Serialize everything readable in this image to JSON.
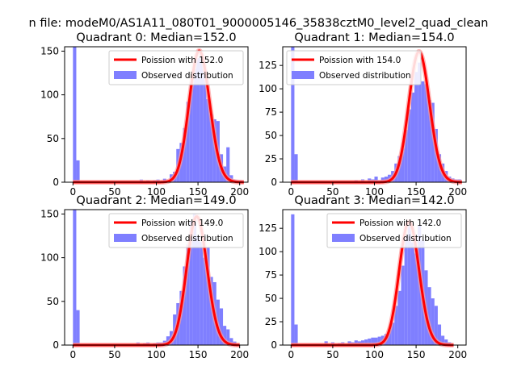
{
  "figure": {
    "suptitle": "n file: modeM0/AS1A11_080T01_9000005146_35838cztM0_level2_quad_clean"
  },
  "colors": {
    "hist": "#7f7fff",
    "fit": "#ff0000",
    "fit_highlight": "#ff9a9a",
    "axis": "#000000",
    "legend_edge": "#cccccc"
  },
  "chart_data": [
    {
      "type": "bar",
      "title": "Quadrant 0: Median=152.0",
      "xlim": [
        -10,
        210
      ],
      "ylim": [
        0,
        155
      ],
      "xticks": [
        0,
        50,
        100,
        150,
        200
      ],
      "yticks": [
        0,
        50,
        100,
        150
      ],
      "legend_position": "upper-right",
      "legend": [
        "Poission with 152.0",
        "Observed distribution"
      ],
      "bin_width": 4,
      "bins": [
        [
          0,
          155
        ],
        [
          4,
          25
        ],
        [
          80,
          3
        ],
        [
          88,
          2
        ],
        [
          96,
          2
        ],
        [
          100,
          3
        ],
        [
          108,
          4
        ],
        [
          116,
          9
        ],
        [
          120,
          12
        ],
        [
          124,
          38
        ],
        [
          128,
          45
        ],
        [
          132,
          62
        ],
        [
          136,
          92
        ],
        [
          140,
          114
        ],
        [
          144,
          130
        ],
        [
          148,
          142
        ],
        [
          152,
          148
        ],
        [
          156,
          128
        ],
        [
          160,
          95
        ],
        [
          164,
          78
        ],
        [
          168,
          72
        ],
        [
          172,
          70
        ],
        [
          176,
          32
        ],
        [
          180,
          18
        ],
        [
          184,
          40
        ],
        [
          188,
          8
        ],
        [
          192,
          3
        ],
        [
          196,
          2
        ],
        [
          200,
          2
        ]
      ],
      "poisson_lambda": 152.0,
      "poisson_scale": 4650,
      "fit_x": [
        0,
        205
      ]
    },
    {
      "type": "bar",
      "title": "Quadrant 1: Median=154.0",
      "xlim": [
        -10,
        210
      ],
      "ylim": [
        0,
        145
      ],
      "xticks": [
        0,
        50,
        100,
        150,
        200
      ],
      "yticks": [
        0,
        25,
        50,
        75,
        100,
        125
      ],
      "legend_position": "upper-left",
      "legend": [
        "Poission with 154.0",
        "Observed distribution"
      ],
      "bin_width": 4,
      "bins": [
        [
          0,
          145
        ],
        [
          4,
          30
        ],
        [
          76,
          2
        ],
        [
          84,
          3
        ],
        [
          92,
          4
        ],
        [
          96,
          3
        ],
        [
          100,
          6
        ],
        [
          104,
          2
        ],
        [
          108,
          5
        ],
        [
          112,
          6
        ],
        [
          116,
          8
        ],
        [
          120,
          12
        ],
        [
          124,
          20
        ],
        [
          128,
          28
        ],
        [
          132,
          36
        ],
        [
          136,
          56
        ],
        [
          140,
          78
        ],
        [
          144,
          96
        ],
        [
          148,
          118
        ],
        [
          152,
          128
        ],
        [
          156,
          108
        ],
        [
          160,
          105
        ],
        [
          164,
          88
        ],
        [
          168,
          85
        ],
        [
          172,
          57
        ],
        [
          176,
          30
        ],
        [
          180,
          20
        ],
        [
          184,
          12
        ],
        [
          188,
          6
        ],
        [
          192,
          4
        ],
        [
          196,
          3
        ],
        [
          200,
          3
        ]
      ],
      "poisson_lambda": 154.0,
      "poisson_scale": 4350,
      "fit_x": [
        0,
        205
      ]
    },
    {
      "type": "bar",
      "title": "Quadrant 2: Median=149.0",
      "xlim": [
        -10,
        210
      ],
      "ylim": [
        0,
        155
      ],
      "xticks": [
        0,
        50,
        100,
        150,
        200
      ],
      "yticks": [
        0,
        50,
        100,
        150
      ],
      "legend_position": "upper-right",
      "legend": [
        "Poission with 149.0",
        "Observed distribution"
      ],
      "bin_width": 4,
      "bins": [
        [
          0,
          155
        ],
        [
          4,
          40
        ],
        [
          76,
          3
        ],
        [
          84,
          2
        ],
        [
          88,
          3
        ],
        [
          96,
          2
        ],
        [
          100,
          3
        ],
        [
          104,
          3
        ],
        [
          108,
          5
        ],
        [
          112,
          10
        ],
        [
          116,
          16
        ],
        [
          120,
          35
        ],
        [
          124,
          48
        ],
        [
          128,
          62
        ],
        [
          132,
          90
        ],
        [
          136,
          115
        ],
        [
          140,
          142
        ],
        [
          144,
          150
        ],
        [
          148,
          125
        ],
        [
          152,
          118
        ],
        [
          156,
          100
        ],
        [
          160,
          112
        ],
        [
          164,
          78
        ],
        [
          168,
          72
        ],
        [
          172,
          52
        ],
        [
          176,
          42
        ],
        [
          180,
          22
        ],
        [
          184,
          18
        ],
        [
          188,
          8
        ],
        [
          192,
          4
        ]
      ],
      "poisson_lambda": 149.0,
      "poisson_scale": 4500,
      "fit_x": [
        0,
        200
      ]
    },
    {
      "type": "bar",
      "title": "Quadrant 3: Median=142.0",
      "xlim": [
        -10,
        210
      ],
      "ylim": [
        0,
        145
      ],
      "xticks": [
        0,
        50,
        100,
        150,
        200
      ],
      "yticks": [
        0,
        25,
        50,
        75,
        100,
        125
      ],
      "legend_position": "upper-right",
      "legend": [
        "Poission with 142.0",
        "Observed distribution"
      ],
      "bin_width": 4,
      "bins": [
        [
          0,
          140
        ],
        [
          4,
          22
        ],
        [
          40,
          4
        ],
        [
          48,
          3
        ],
        [
          56,
          2
        ],
        [
          60,
          3
        ],
        [
          68,
          4
        ],
        [
          72,
          3
        ],
        [
          76,
          5
        ],
        [
          80,
          4
        ],
        [
          84,
          5
        ],
        [
          88,
          6
        ],
        [
          92,
          7
        ],
        [
          96,
          8
        ],
        [
          100,
          8
        ],
        [
          104,
          9
        ],
        [
          108,
          10
        ],
        [
          112,
          12
        ],
        [
          116,
          16
        ],
        [
          120,
          24
        ],
        [
          124,
          42
        ],
        [
          128,
          58
        ],
        [
          132,
          85
        ],
        [
          136,
          118
        ],
        [
          140,
          128
        ],
        [
          144,
          110
        ],
        [
          148,
          98
        ],
        [
          152,
          128
        ],
        [
          156,
          112
        ],
        [
          160,
          80
        ],
        [
          164,
          62
        ],
        [
          168,
          50
        ],
        [
          172,
          42
        ],
        [
          176,
          22
        ],
        [
          180,
          10
        ],
        [
          184,
          6
        ],
        [
          188,
          3
        ]
      ],
      "poisson_lambda": 142.0,
      "poisson_scale": 3950,
      "fit_x": [
        0,
        195
      ]
    }
  ]
}
